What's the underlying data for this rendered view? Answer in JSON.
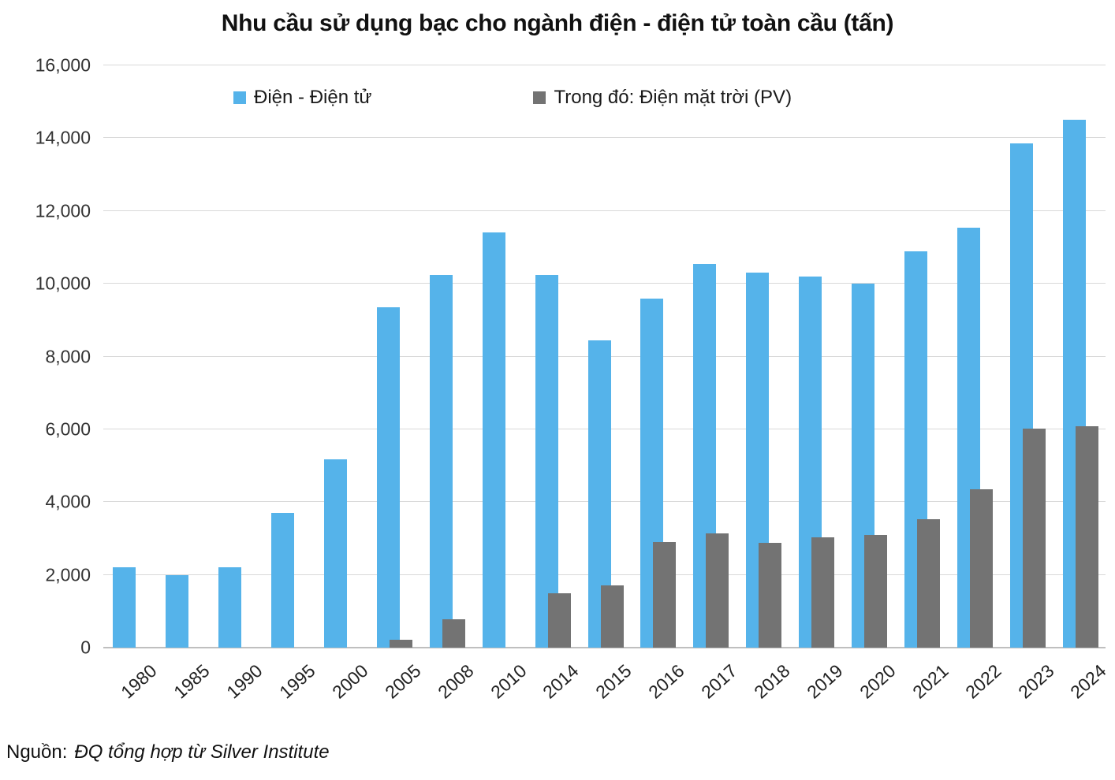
{
  "title": "Nhu cầu sử dụng bạc cho ngành điện - điện tử toàn cầu (tấn)",
  "legend": [
    {
      "label": "Điện - Điện tử",
      "color": "#55B3EA"
    },
    {
      "label": "Trong đó: Điện mặt trời (PV)",
      "color": "#737373"
    }
  ],
  "source": {
    "prefix": "Nguồn:",
    "text": "ĐQ tổng hợp từ Silver Institute"
  },
  "colors": {
    "blue": "#55B3EA",
    "gray": "#737373",
    "gridline": "#D9D9D9",
    "axis_line": "#BFBFBF",
    "title_text": "#111111",
    "tick_text": "#333333"
  },
  "chart_data": {
    "type": "bar",
    "title": "Nhu cầu sử dụng bạc cho ngành điện - điện tử toàn cầu (tấn)",
    "categories": [
      "1980",
      "1985",
      "1990",
      "1995",
      "2000",
      "2005",
      "2008",
      "2010",
      "2014",
      "2015",
      "2016",
      "2017",
      "2018",
      "2019",
      "2020",
      "2021",
      "2022",
      "2023",
      "2024"
    ],
    "series": [
      {
        "name": "Điện - Điện tử",
        "color": "#55B3EA",
        "values": [
          2200,
          2000,
          2200,
          3700,
          5170,
          9350,
          10250,
          11400,
          10250,
          8450,
          9600,
          10550,
          10300,
          10200,
          10000,
          10900,
          11550,
          13850,
          14500
        ]
      },
      {
        "name": "Trong đó: Điện mặt trời (PV)",
        "color": "#737373",
        "values": [
          null,
          null,
          null,
          null,
          null,
          220,
          780,
          null,
          1500,
          1700,
          2900,
          3150,
          2880,
          3030,
          3100,
          3530,
          4350,
          6020,
          6080
        ]
      }
    ],
    "xlabel": "",
    "ylabel": "",
    "ylim": [
      0,
      16000
    ],
    "ytick_step": 2000,
    "grid": true,
    "legend_position": "top-inside",
    "x_tick_rotation_deg": -42
  }
}
